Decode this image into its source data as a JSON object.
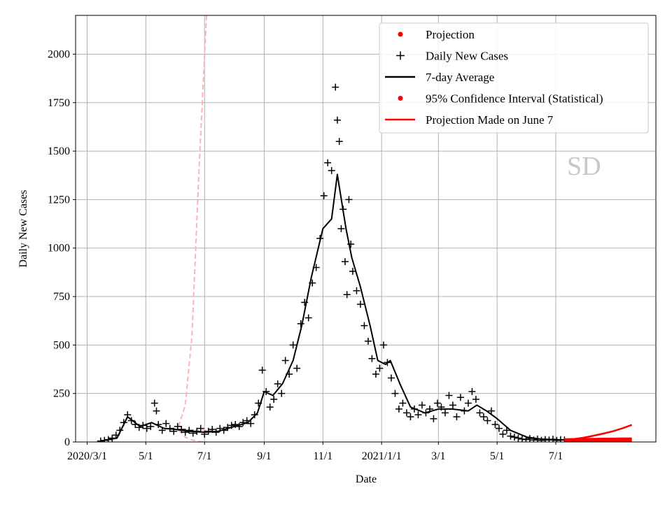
{
  "chart_data": {
    "type": "line",
    "title": "",
    "xlabel": "Date",
    "ylabel": "Daily New Cases",
    "xlim": [
      "2020-02-18",
      "2021-10-13"
    ],
    "ylim": [
      0,
      2200
    ],
    "grid": true,
    "legend_position": "top-right",
    "x_ticks": [
      {
        "date": "2020-03-01",
        "label": "2020/3/1"
      },
      {
        "date": "2020-05-01",
        "label": "5/1"
      },
      {
        "date": "2020-07-01",
        "label": "7/1"
      },
      {
        "date": "2020-09-01",
        "label": "9/1"
      },
      {
        "date": "2020-11-01",
        "label": "11/1"
      },
      {
        "date": "2021-01-01",
        "label": "2021/1/1"
      },
      {
        "date": "2021-03-01",
        "label": "3/1"
      },
      {
        "date": "2021-05-01",
        "label": "5/1"
      },
      {
        "date": "2021-07-01",
        "label": "7/1"
      }
    ],
    "y_ticks": [
      "0",
      "250",
      "500",
      "750",
      "1000",
      "1250",
      "1500",
      "1750",
      "2000"
    ],
    "watermark": "SD",
    "colors": {
      "daily": "#000000",
      "average": "#000000",
      "projection": "#ff0000",
      "earlier_projection": "#ffb3b3",
      "grid": "#b0b0b0"
    },
    "legend": [
      {
        "label": "Projection",
        "marker": "dot",
        "color": "#ff0000"
      },
      {
        "label": "Daily New Cases",
        "marker": "plus",
        "color": "#000000"
      },
      {
        "label": "7-day Average",
        "marker": "line",
        "color": "#000000"
      },
      {
        "label": "95% Confidence Interval (Statistical)",
        "marker": "dot",
        "color": "#ff0000"
      },
      {
        "label": "Projection Made on June 7",
        "marker": "line",
        "color": "#ff0000"
      }
    ],
    "series": [
      {
        "name": "Daily New Cases",
        "type": "scatter",
        "points": [
          [
            "2020-03-15",
            5
          ],
          [
            "2020-03-19",
            8
          ],
          [
            "2020-03-23",
            12
          ],
          [
            "2020-03-27",
            20
          ],
          [
            "2020-03-31",
            35
          ],
          [
            "2020-04-04",
            60
          ],
          [
            "2020-04-08",
            100
          ],
          [
            "2020-04-12",
            140
          ],
          [
            "2020-04-16",
            110
          ],
          [
            "2020-04-20",
            90
          ],
          [
            "2020-04-24",
            75
          ],
          [
            "2020-04-28",
            85
          ],
          [
            "2020-05-02",
            70
          ],
          [
            "2020-05-06",
            80
          ],
          [
            "2020-05-10",
            200
          ],
          [
            "2020-05-12",
            160
          ],
          [
            "2020-05-14",
            90
          ],
          [
            "2020-05-18",
            60
          ],
          [
            "2020-05-22",
            95
          ],
          [
            "2020-05-26",
            70
          ],
          [
            "2020-05-30",
            55
          ],
          [
            "2020-06-03",
            80
          ],
          [
            "2020-06-07",
            65
          ],
          [
            "2020-06-11",
            50
          ],
          [
            "2020-06-15",
            60
          ],
          [
            "2020-06-19",
            45
          ],
          [
            "2020-06-23",
            55
          ],
          [
            "2020-06-27",
            70
          ],
          [
            "2020-07-01",
            40
          ],
          [
            "2020-07-05",
            55
          ],
          [
            "2020-07-09",
            65
          ],
          [
            "2020-07-13",
            50
          ],
          [
            "2020-07-17",
            70
          ],
          [
            "2020-07-21",
            60
          ],
          [
            "2020-07-25",
            75
          ],
          [
            "2020-07-29",
            85
          ],
          [
            "2020-08-02",
            90
          ],
          [
            "2020-08-06",
            80
          ],
          [
            "2020-08-10",
            100
          ],
          [
            "2020-08-14",
            110
          ],
          [
            "2020-08-18",
            95
          ],
          [
            "2020-08-22",
            140
          ],
          [
            "2020-08-26",
            200
          ],
          [
            "2020-08-30",
            370
          ],
          [
            "2020-09-03",
            260
          ],
          [
            "2020-09-07",
            180
          ],
          [
            "2020-09-11",
            220
          ],
          [
            "2020-09-15",
            300
          ],
          [
            "2020-09-19",
            250
          ],
          [
            "2020-09-23",
            420
          ],
          [
            "2020-09-27",
            350
          ],
          [
            "2020-10-01",
            500
          ],
          [
            "2020-10-05",
            380
          ],
          [
            "2020-10-09",
            610
          ],
          [
            "2020-10-13",
            720
          ],
          [
            "2020-10-17",
            640
          ],
          [
            "2020-10-21",
            820
          ],
          [
            "2020-10-25",
            900
          ],
          [
            "2020-10-29",
            1050
          ],
          [
            "2020-11-02",
            1270
          ],
          [
            "2020-11-06",
            1440
          ],
          [
            "2020-11-10",
            1400
          ],
          [
            "2020-11-14",
            1830
          ],
          [
            "2020-11-16",
            1660
          ],
          [
            "2020-11-18",
            1550
          ],
          [
            "2020-11-20",
            1100
          ],
          [
            "2020-11-22",
            1200
          ],
          [
            "2020-11-24",
            930
          ],
          [
            "2020-11-26",
            760
          ],
          [
            "2020-11-28",
            1250
          ],
          [
            "2020-11-30",
            1020
          ],
          [
            "2020-12-02",
            880
          ],
          [
            "2020-12-06",
            780
          ],
          [
            "2020-12-10",
            710
          ],
          [
            "2020-12-14",
            600
          ],
          [
            "2020-12-18",
            520
          ],
          [
            "2020-12-22",
            430
          ],
          [
            "2020-12-26",
            350
          ],
          [
            "2020-12-30",
            380
          ],
          [
            "2021-01-03",
            500
          ],
          [
            "2021-01-07",
            410
          ],
          [
            "2021-01-11",
            330
          ],
          [
            "2021-01-15",
            250
          ],
          [
            "2021-01-19",
            170
          ],
          [
            "2021-01-23",
            200
          ],
          [
            "2021-01-27",
            150
          ],
          [
            "2021-01-31",
            130
          ],
          [
            "2021-02-04",
            170
          ],
          [
            "2021-02-08",
            140
          ],
          [
            "2021-02-12",
            190
          ],
          [
            "2021-02-16",
            150
          ],
          [
            "2021-02-20",
            170
          ],
          [
            "2021-02-24",
            120
          ],
          [
            "2021-02-28",
            200
          ],
          [
            "2021-03-04",
            180
          ],
          [
            "2021-03-08",
            150
          ],
          [
            "2021-03-12",
            240
          ],
          [
            "2021-03-16",
            190
          ],
          [
            "2021-03-20",
            130
          ],
          [
            "2021-03-24",
            230
          ],
          [
            "2021-03-28",
            160
          ],
          [
            "2021-04-01",
            200
          ],
          [
            "2021-04-05",
            260
          ],
          [
            "2021-04-09",
            220
          ],
          [
            "2021-04-13",
            150
          ],
          [
            "2021-04-17",
            130
          ],
          [
            "2021-04-21",
            110
          ],
          [
            "2021-04-25",
            160
          ],
          [
            "2021-04-29",
            90
          ],
          [
            "2021-05-03",
            70
          ],
          [
            "2021-05-07",
            40
          ],
          [
            "2021-05-11",
            60
          ],
          [
            "2021-05-15",
            30
          ],
          [
            "2021-05-19",
            25
          ],
          [
            "2021-05-23",
            20
          ],
          [
            "2021-05-27",
            15
          ],
          [
            "2021-05-31",
            12
          ],
          [
            "2021-06-04",
            18
          ],
          [
            "2021-06-08",
            10
          ],
          [
            "2021-06-12",
            15
          ],
          [
            "2021-06-16",
            8
          ],
          [
            "2021-06-20",
            12
          ],
          [
            "2021-06-24",
            10
          ],
          [
            "2021-06-28",
            14
          ],
          [
            "2021-07-02",
            8
          ],
          [
            "2021-07-06",
            12
          ],
          [
            "2021-07-10",
            10
          ]
        ]
      },
      {
        "name": "7-day Average",
        "type": "line",
        "points": [
          [
            "2020-03-15",
            5
          ],
          [
            "2020-04-01",
            20
          ],
          [
            "2020-04-12",
            130
          ],
          [
            "2020-04-25",
            80
          ],
          [
            "2020-05-07",
            100
          ],
          [
            "2020-05-20",
            70
          ],
          [
            "2020-06-01",
            65
          ],
          [
            "2020-06-15",
            55
          ],
          [
            "2020-07-01",
            50
          ],
          [
            "2020-07-15",
            55
          ],
          [
            "2020-08-01",
            80
          ],
          [
            "2020-08-15",
            100
          ],
          [
            "2020-08-25",
            150
          ],
          [
            "2020-09-01",
            260
          ],
          [
            "2020-09-10",
            240
          ],
          [
            "2020-09-20",
            300
          ],
          [
            "2020-10-01",
            420
          ],
          [
            "2020-10-10",
            600
          ],
          [
            "2020-10-20",
            850
          ],
          [
            "2020-11-01",
            1100
          ],
          [
            "2020-11-10",
            1150
          ],
          [
            "2020-11-16",
            1380
          ],
          [
            "2020-11-25",
            1100
          ],
          [
            "2020-12-01",
            950
          ],
          [
            "2020-12-10",
            800
          ],
          [
            "2020-12-20",
            600
          ],
          [
            "2020-12-28",
            420
          ],
          [
            "2021-01-05",
            400
          ],
          [
            "2021-01-10",
            420
          ],
          [
            "2021-01-20",
            300
          ],
          [
            "2021-01-31",
            180
          ],
          [
            "2021-02-15",
            150
          ],
          [
            "2021-03-01",
            170
          ],
          [
            "2021-03-15",
            170
          ],
          [
            "2021-04-01",
            160
          ],
          [
            "2021-04-10",
            190
          ],
          [
            "2021-04-20",
            160
          ],
          [
            "2021-05-01",
            120
          ],
          [
            "2021-05-15",
            60
          ],
          [
            "2021-06-01",
            25
          ],
          [
            "2021-06-15",
            15
          ],
          [
            "2021-07-01",
            12
          ],
          [
            "2021-07-10",
            10
          ]
        ]
      },
      {
        "name": "Projection",
        "type": "line",
        "points": [
          [
            "2021-07-10",
            10
          ],
          [
            "2021-07-20",
            11
          ],
          [
            "2021-07-30",
            12
          ],
          [
            "2021-08-09",
            12
          ],
          [
            "2021-08-19",
            13
          ],
          [
            "2021-08-29",
            13
          ],
          [
            "2021-09-08",
            14
          ],
          [
            "2021-09-18",
            14
          ]
        ]
      },
      {
        "name": "95% Confidence Interval (Statistical)",
        "type": "band",
        "upper": [
          [
            "2021-07-10",
            12
          ],
          [
            "2021-07-20",
            15
          ],
          [
            "2021-07-30",
            22
          ],
          [
            "2021-08-09",
            32
          ],
          [
            "2021-08-19",
            43
          ],
          [
            "2021-08-29",
            55
          ],
          [
            "2021-09-08",
            70
          ],
          [
            "2021-09-18",
            88
          ]
        ],
        "lower": [
          [
            "2021-07-10",
            8
          ],
          [
            "2021-07-20",
            8
          ],
          [
            "2021-07-30",
            7
          ],
          [
            "2021-08-09",
            7
          ],
          [
            "2021-08-19",
            6
          ],
          [
            "2021-08-29",
            6
          ],
          [
            "2021-09-08",
            5
          ],
          [
            "2021-09-18",
            5
          ]
        ]
      },
      {
        "type": "dashed",
        "points": [
          [
            "2020-06-04",
            80
          ],
          [
            "2020-06-11",
            190
          ],
          [
            "2020-06-18",
            550
          ],
          [
            "2020-06-25",
            1380
          ],
          [
            "2020-07-03",
            2200
          ]
        ]
      },
      {
        "type": "dashed",
        "points": [
          [
            "2020-06-04",
            60
          ],
          [
            "2020-07-10",
            60
          ]
        ]
      },
      {
        "type": "dashed",
        "points": [
          [
            "2020-06-04",
            60
          ],
          [
            "2020-06-11",
            25
          ],
          [
            "2020-06-18",
            10
          ],
          [
            "2020-06-25",
            3
          ],
          [
            "2020-07-03",
            0
          ]
        ]
      }
    ]
  }
}
